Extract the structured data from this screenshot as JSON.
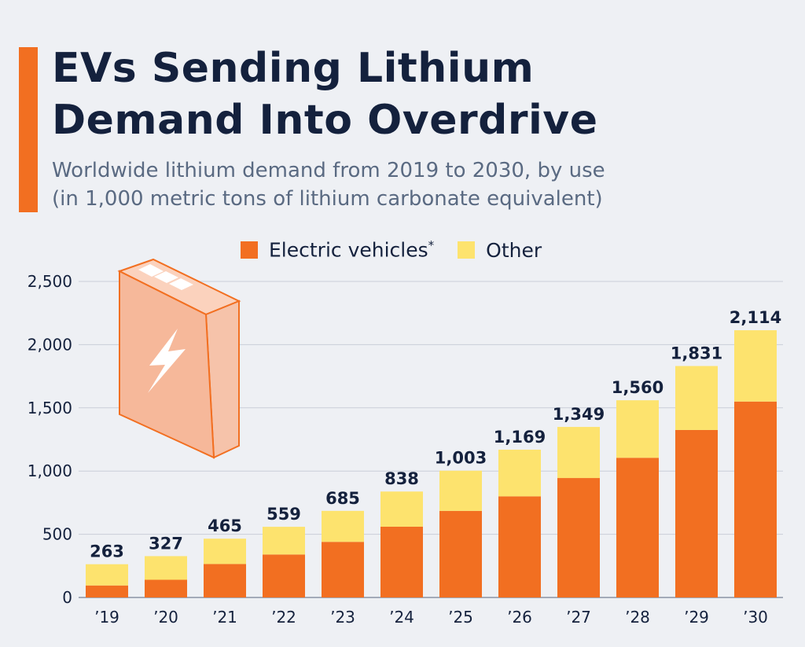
{
  "header": {
    "title_line1": "EVs Sending Lithium",
    "title_line2": "Demand Into Overdrive",
    "subtitle_line1": "Worldwide lithium demand from 2019 to 2030, by use",
    "subtitle_line2": "(in 1,000 metric tons of lithium carbonate equivalent)"
  },
  "legend": {
    "ev_label": "Electric vehicles",
    "ev_mark": "*",
    "other_label": "Other"
  },
  "colors": {
    "ev": "#f26f21",
    "other": "#fde36e",
    "accent": "#f26f21",
    "text": "#14213d",
    "grid": "#c9ced8"
  },
  "icons": {
    "battery": "battery-lightning-icon"
  },
  "chart_data": {
    "type": "bar",
    "stacked": true,
    "categories": [
      "’19",
      "’20",
      "’21",
      "’22",
      "’23",
      "’24",
      "’25",
      "’26",
      "’27",
      "’28",
      "’29",
      "’30"
    ],
    "series": [
      {
        "name": "Electric vehicles*",
        "values": [
          95,
          140,
          265,
          340,
          440,
          560,
          685,
          800,
          945,
          1105,
          1325,
          1550
        ]
      },
      {
        "name": "Other",
        "values": [
          168,
          187,
          200,
          219,
          245,
          278,
          318,
          369,
          404,
          455,
          506,
          564
        ]
      }
    ],
    "totals": [
      "263",
      "327",
      "465",
      "559",
      "685",
      "838",
      "1,003",
      "1,169",
      "1,349",
      "1,560",
      "1,831",
      "2,114"
    ],
    "yticks": [
      0,
      500,
      1000,
      1500,
      2000,
      2500
    ],
    "ytick_labels": [
      "0",
      "500",
      "1,000",
      "1,500",
      "2,000",
      "2,500"
    ],
    "ylim": [
      0,
      2500
    ],
    "grid": true,
    "legend_position": "top-center"
  }
}
